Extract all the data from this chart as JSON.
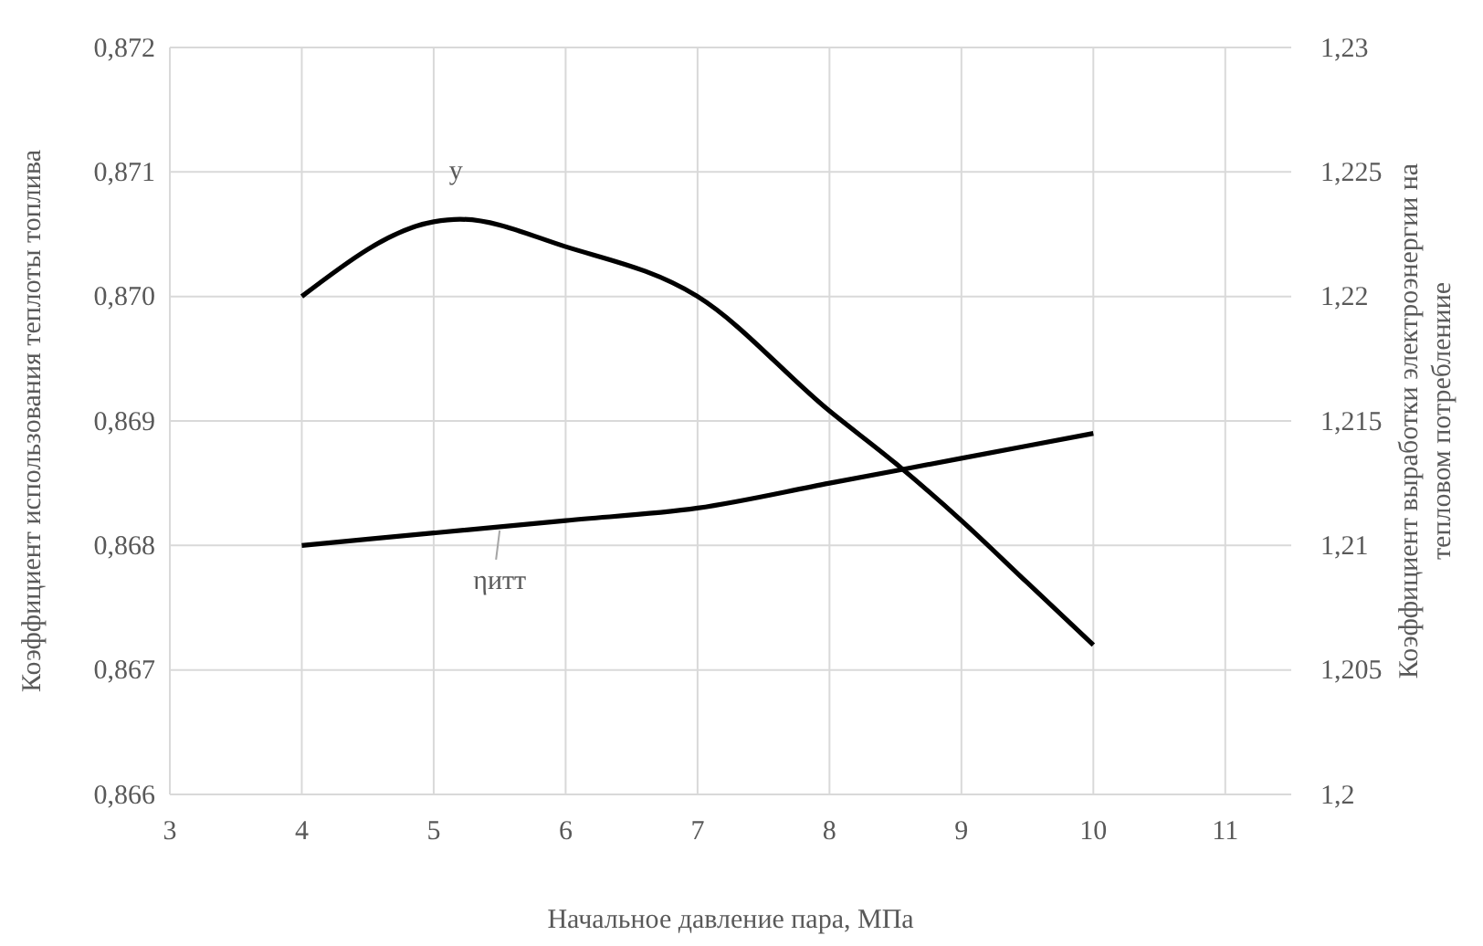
{
  "chart_data": {
    "type": "line",
    "xlabel": "Начальное давление пара, МПа",
    "ylabel": "Коэффициент использования теплоты топлива",
    "y2label": "Коэффициент выработки электроэнергии на тепловом потреблениие",
    "xlim": [
      3,
      11.5
    ],
    "xticks": [
      3,
      4,
      5,
      6,
      7,
      8,
      9,
      10,
      11
    ],
    "ylim": [
      0.866,
      0.872
    ],
    "yticks": [
      {
        "value": 0.866,
        "label": "0,866"
      },
      {
        "value": 0.867,
        "label": "0,867"
      },
      {
        "value": 0.868,
        "label": "0,868"
      },
      {
        "value": 0.869,
        "label": "0,869"
      },
      {
        "value": 0.87,
        "label": "0,870"
      },
      {
        "value": 0.871,
        "label": "0,871"
      },
      {
        "value": 0.872,
        "label": "0,872"
      }
    ],
    "y2lim": [
      1.2,
      1.23
    ],
    "y2ticks": [
      {
        "value": 1.2,
        "label": "1,2"
      },
      {
        "value": 1.205,
        "label": "1,205"
      },
      {
        "value": 1.21,
        "label": "1,21"
      },
      {
        "value": 1.215,
        "label": "1,215"
      },
      {
        "value": 1.22,
        "label": "1,22"
      },
      {
        "value": 1.225,
        "label": "1,225"
      },
      {
        "value": 1.23,
        "label": "1,23"
      }
    ],
    "grid": true,
    "marker": "none",
    "line_style": "solid",
    "series": [
      {
        "name": "у",
        "color": "#000000",
        "axis": "y2",
        "x": [
          4,
          5,
          5.2,
          6,
          7,
          8,
          8.5,
          9,
          9.5,
          10
        ],
        "values": [
          1.22,
          1.223,
          1.2231,
          1.222,
          1.22,
          1.2154,
          1.2133,
          1.211,
          1.2085,
          1.206
        ]
      },
      {
        "name": "ηитт",
        "color": "#000000",
        "x": [
          4,
          5,
          6,
          7,
          8,
          9,
          10
        ],
        "values": [
          0.868,
          0.8681,
          0.8682,
          0.8683,
          0.8685,
          0.8687,
          0.8689
        ]
      }
    ]
  }
}
